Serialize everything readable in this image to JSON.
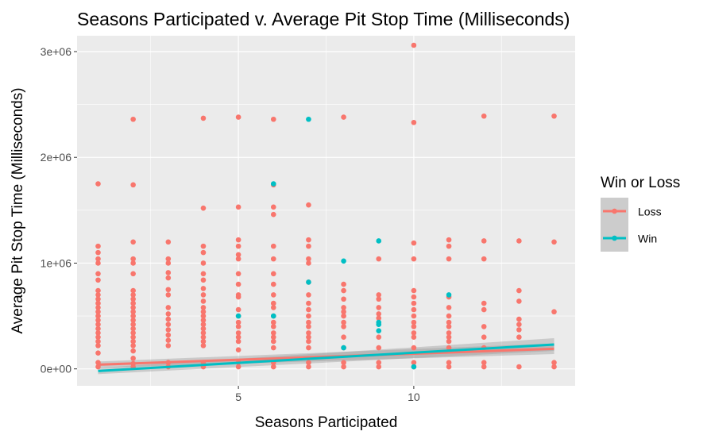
{
  "colors": {
    "loss": "#F8766D",
    "win": "#00BFC4",
    "panel_bg": "#EBEBEB",
    "grid_major": "#FFFFFF",
    "tick": "#333333",
    "confidence_band": "#999999"
  },
  "chart_data": {
    "type": "scatter",
    "title": "Seasons Participated v. Average Pit Stop Time (Milliseconds)",
    "xlabel": "Seasons Participated",
    "ylabel": "Average Pit Stop Time (Milliseconds)",
    "xlim": [
      0.4,
      14.6
    ],
    "ylim": [
      -160000,
      3150000
    ],
    "xticks": [
      5,
      10
    ],
    "xtick_labels": [
      "5",
      "10"
    ],
    "yticks": [
      0,
      1000000,
      2000000,
      3000000
    ],
    "ytick_labels": [
      "0e+00",
      "1e+06",
      "2e+06",
      "3e+06"
    ],
    "grid": true,
    "legend": {
      "title": "Win or Loss",
      "position": "right",
      "entries": [
        "Loss",
        "Win"
      ]
    },
    "series": [
      {
        "name": "Loss",
        "color": "#F8766D",
        "points": [
          [
            1,
            20000
          ],
          [
            1,
            60000
          ],
          [
            1,
            150000
          ],
          [
            1,
            220000
          ],
          [
            1,
            260000
          ],
          [
            1,
            300000
          ],
          [
            1,
            340000
          ],
          [
            1,
            380000
          ],
          [
            1,
            420000
          ],
          [
            1,
            460000
          ],
          [
            1,
            500000
          ],
          [
            1,
            540000
          ],
          [
            1,
            580000
          ],
          [
            1,
            620000
          ],
          [
            1,
            660000
          ],
          [
            1,
            700000
          ],
          [
            1,
            740000
          ],
          [
            1,
            840000
          ],
          [
            1,
            900000
          ],
          [
            1,
            1000000
          ],
          [
            1,
            1040000
          ],
          [
            1,
            1100000
          ],
          [
            1,
            1160000
          ],
          [
            1,
            1750000
          ],
          [
            2,
            20000
          ],
          [
            2,
            50000
          ],
          [
            2,
            100000
          ],
          [
            2,
            170000
          ],
          [
            2,
            220000
          ],
          [
            2,
            260000
          ],
          [
            2,
            300000
          ],
          [
            2,
            340000
          ],
          [
            2,
            380000
          ],
          [
            2,
            420000
          ],
          [
            2,
            460000
          ],
          [
            2,
            500000
          ],
          [
            2,
            540000
          ],
          [
            2,
            580000
          ],
          [
            2,
            620000
          ],
          [
            2,
            660000
          ],
          [
            2,
            700000
          ],
          [
            2,
            740000
          ],
          [
            2,
            900000
          ],
          [
            2,
            1000000
          ],
          [
            2,
            1040000
          ],
          [
            2,
            1200000
          ],
          [
            2,
            1740000
          ],
          [
            2,
            2360000
          ],
          [
            3,
            20000
          ],
          [
            3,
            60000
          ],
          [
            3,
            220000
          ],
          [
            3,
            270000
          ],
          [
            3,
            320000
          ],
          [
            3,
            370000
          ],
          [
            3,
            420000
          ],
          [
            3,
            470000
          ],
          [
            3,
            520000
          ],
          [
            3,
            580000
          ],
          [
            3,
            700000
          ],
          [
            3,
            750000
          ],
          [
            3,
            860000
          ],
          [
            3,
            910000
          ],
          [
            3,
            1000000
          ],
          [
            3,
            1040000
          ],
          [
            3,
            1200000
          ],
          [
            4,
            20000
          ],
          [
            4,
            60000
          ],
          [
            4,
            220000
          ],
          [
            4,
            260000
          ],
          [
            4,
            300000
          ],
          [
            4,
            340000
          ],
          [
            4,
            380000
          ],
          [
            4,
            420000
          ],
          [
            4,
            460000
          ],
          [
            4,
            500000
          ],
          [
            4,
            540000
          ],
          [
            4,
            580000
          ],
          [
            4,
            640000
          ],
          [
            4,
            700000
          ],
          [
            4,
            760000
          ],
          [
            4,
            840000
          ],
          [
            4,
            900000
          ],
          [
            4,
            1000000
          ],
          [
            4,
            1100000
          ],
          [
            4,
            1160000
          ],
          [
            4,
            1520000
          ],
          [
            4,
            2370000
          ],
          [
            5,
            20000
          ],
          [
            5,
            60000
          ],
          [
            5,
            180000
          ],
          [
            5,
            260000
          ],
          [
            5,
            300000
          ],
          [
            5,
            340000
          ],
          [
            5,
            400000
          ],
          [
            5,
            440000
          ],
          [
            5,
            500000
          ],
          [
            5,
            560000
          ],
          [
            5,
            680000
          ],
          [
            5,
            700000
          ],
          [
            5,
            800000
          ],
          [
            5,
            900000
          ],
          [
            5,
            1040000
          ],
          [
            5,
            1080000
          ],
          [
            5,
            1160000
          ],
          [
            5,
            1220000
          ],
          [
            5,
            1530000
          ],
          [
            5,
            2380000
          ],
          [
            6,
            20000
          ],
          [
            6,
            60000
          ],
          [
            6,
            200000
          ],
          [
            6,
            260000
          ],
          [
            6,
            300000
          ],
          [
            6,
            340000
          ],
          [
            6,
            400000
          ],
          [
            6,
            440000
          ],
          [
            6,
            500000
          ],
          [
            6,
            580000
          ],
          [
            6,
            620000
          ],
          [
            6,
            700000
          ],
          [
            6,
            800000
          ],
          [
            6,
            900000
          ],
          [
            6,
            1040000
          ],
          [
            6,
            1160000
          ],
          [
            6,
            1460000
          ],
          [
            6,
            1530000
          ],
          [
            6,
            1740000
          ],
          [
            6,
            2360000
          ],
          [
            7,
            20000
          ],
          [
            7,
            60000
          ],
          [
            7,
            200000
          ],
          [
            7,
            260000
          ],
          [
            7,
            300000
          ],
          [
            7,
            340000
          ],
          [
            7,
            400000
          ],
          [
            7,
            440000
          ],
          [
            7,
            500000
          ],
          [
            7,
            560000
          ],
          [
            7,
            620000
          ],
          [
            7,
            700000
          ],
          [
            7,
            820000
          ],
          [
            7,
            1000000
          ],
          [
            7,
            1040000
          ],
          [
            7,
            1160000
          ],
          [
            7,
            1220000
          ],
          [
            7,
            1550000
          ],
          [
            8,
            20000
          ],
          [
            8,
            60000
          ],
          [
            8,
            200000
          ],
          [
            8,
            300000
          ],
          [
            8,
            400000
          ],
          [
            8,
            440000
          ],
          [
            8,
            500000
          ],
          [
            8,
            540000
          ],
          [
            8,
            580000
          ],
          [
            8,
            660000
          ],
          [
            8,
            740000
          ],
          [
            8,
            800000
          ],
          [
            8,
            2380000
          ],
          [
            9,
            20000
          ],
          [
            9,
            60000
          ],
          [
            9,
            200000
          ],
          [
            9,
            300000
          ],
          [
            9,
            480000
          ],
          [
            9,
            520000
          ],
          [
            9,
            580000
          ],
          [
            9,
            660000
          ],
          [
            9,
            700000
          ],
          [
            9,
            1040000
          ],
          [
            10,
            20000
          ],
          [
            10,
            60000
          ],
          [
            10,
            200000
          ],
          [
            10,
            300000
          ],
          [
            10,
            340000
          ],
          [
            10,
            400000
          ],
          [
            10,
            440000
          ],
          [
            10,
            500000
          ],
          [
            10,
            560000
          ],
          [
            10,
            620000
          ],
          [
            10,
            680000
          ],
          [
            10,
            740000
          ],
          [
            10,
            1040000
          ],
          [
            10,
            1190000
          ],
          [
            10,
            2330000
          ],
          [
            10,
            3060000
          ],
          [
            11,
            20000
          ],
          [
            11,
            60000
          ],
          [
            11,
            200000
          ],
          [
            11,
            260000
          ],
          [
            11,
            300000
          ],
          [
            11,
            340000
          ],
          [
            11,
            400000
          ],
          [
            11,
            440000
          ],
          [
            11,
            500000
          ],
          [
            11,
            580000
          ],
          [
            11,
            680000
          ],
          [
            11,
            1040000
          ],
          [
            11,
            1160000
          ],
          [
            11,
            1220000
          ],
          [
            12,
            20000
          ],
          [
            12,
            60000
          ],
          [
            12,
            200000
          ],
          [
            12,
            300000
          ],
          [
            12,
            400000
          ],
          [
            12,
            560000
          ],
          [
            12,
            620000
          ],
          [
            12,
            1040000
          ],
          [
            12,
            1210000
          ],
          [
            12,
            2390000
          ],
          [
            13,
            20000
          ],
          [
            13,
            300000
          ],
          [
            13,
            370000
          ],
          [
            13,
            420000
          ],
          [
            13,
            470000
          ],
          [
            13,
            640000
          ],
          [
            13,
            740000
          ],
          [
            13,
            1210000
          ],
          [
            14,
            20000
          ],
          [
            14,
            60000
          ],
          [
            14,
            540000
          ],
          [
            14,
            1200000
          ],
          [
            14,
            2390000
          ]
        ]
      },
      {
        "name": "Win",
        "color": "#00BFC4",
        "points": [
          [
            5,
            500000
          ],
          [
            6,
            500000
          ],
          [
            6,
            1750000
          ],
          [
            7,
            820000
          ],
          [
            7,
            2360000
          ],
          [
            8,
            200000
          ],
          [
            8,
            1020000
          ],
          [
            9,
            360000
          ],
          [
            9,
            420000
          ],
          [
            9,
            440000
          ],
          [
            9,
            1210000
          ],
          [
            10,
            20000
          ],
          [
            11,
            700000
          ]
        ]
      }
    ],
    "trend_lines": [
      {
        "name": "Loss",
        "x": [
          1,
          14
        ],
        "y": [
          40000,
          190000
        ],
        "band": [
          30000,
          50000
        ]
      },
      {
        "name": "Win",
        "x": [
          1,
          14
        ],
        "y": [
          -20000,
          230000
        ],
        "band": [
          30000,
          60000
        ]
      }
    ]
  }
}
